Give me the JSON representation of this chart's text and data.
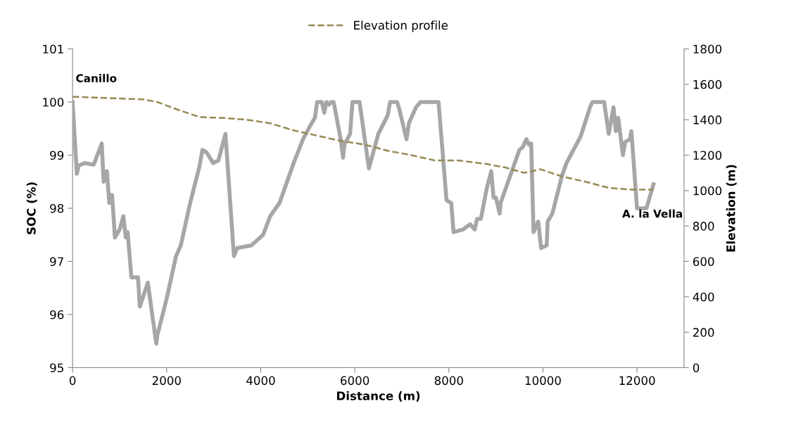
{
  "chart_data": {
    "type": "line",
    "xlabel": "Distance (m)",
    "ylabel": "SOC (%)",
    "y2label": "Elevation (m)",
    "xlim": [
      0,
      13000
    ],
    "xticks": [
      0,
      2000,
      4000,
      6000,
      8000,
      10000,
      12000
    ],
    "ylim": [
      95,
      101
    ],
    "yticks": [
      95,
      96,
      97,
      98,
      99,
      100,
      101
    ],
    "y2lim": [
      0,
      1800
    ],
    "y2ticks": [
      0,
      200,
      400,
      600,
      800,
      1000,
      1200,
      1400,
      1600,
      1800
    ],
    "grid": false,
    "legend": "top",
    "marker": "none",
    "annotations": [
      "Canillo",
      "A. la Vella"
    ],
    "series": [
      {
        "color": "#a6a6a6",
        "line_style": "solid",
        "x": [
          0,
          90,
          130,
          250,
          450,
          570,
          620,
          660,
          730,
          780,
          840,
          900,
          1000,
          1080,
          1130,
          1170,
          1250,
          1390,
          1430,
          1600,
          1700,
          1780,
          1800,
          2000,
          2100,
          2200,
          2300,
          2500,
          2700,
          2760,
          2850,
          2990,
          3100,
          3250,
          3430,
          3500,
          3800,
          4050,
          4200,
          4400,
          4700,
          4900,
          5050,
          5150,
          5200,
          5300,
          5350,
          5400,
          5450,
          5500,
          5550,
          5700,
          5750,
          5780,
          5900,
          5950,
          6100,
          6300,
          6500,
          6700,
          6750,
          6900,
          6950,
          7100,
          7150,
          7300,
          7400,
          7780,
          7950,
          8050,
          8100,
          8300,
          8450,
          8550,
          8600,
          8680,
          8800,
          8900,
          8950,
          9000,
          9080,
          9100,
          9300,
          9500,
          9570,
          9650,
          9700,
          9750,
          9800,
          9900,
          9960,
          10080,
          10100,
          10200,
          10400,
          10500,
          10800,
          11000,
          11050,
          11300,
          11400,
          11500,
          11550,
          11600,
          11700,
          11750,
          11850,
          11880,
          12000,
          12200,
          12350
        ],
        "values": [
          100,
          98.65,
          98.8,
          98.85,
          98.82,
          99.1,
          99.22,
          98.5,
          98.7,
          98.1,
          98.25,
          97.45,
          97.6,
          97.85,
          97.45,
          97.55,
          96.7,
          96.7,
          96.15,
          96.6,
          95.95,
          95.45,
          95.6,
          96.3,
          96.7,
          97.1,
          97.3,
          98.1,
          98.8,
          99.1,
          99.05,
          98.85,
          98.9,
          99.4,
          97.1,
          97.25,
          97.3,
          97.5,
          97.85,
          98.1,
          98.85,
          99.3,
          99.55,
          99.7,
          100,
          100,
          99.8,
          100,
          99.95,
          100,
          100,
          99.3,
          98.95,
          99.2,
          99.4,
          100,
          100,
          98.75,
          99.4,
          99.75,
          100,
          100,
          99.85,
          99.3,
          99.6,
          99.9,
          100,
          100,
          98.15,
          98.1,
          97.55,
          97.6,
          97.7,
          97.6,
          97.8,
          97.8,
          98.35,
          98.7,
          98.2,
          98.2,
          97.9,
          98.1,
          98.6,
          99.1,
          99.15,
          99.3,
          99.2,
          99.22,
          97.55,
          97.75,
          97.25,
          97.3,
          97.75,
          97.9,
          98.6,
          98.85,
          99.35,
          99.9,
          100,
          100,
          99.4,
          99.9,
          99.45,
          99.7,
          99.0,
          99.25,
          99.3,
          99.45,
          98.0,
          98.0,
          98.45
        ]
      },
      {
        "name": "Elevation profile",
        "color": "#948a54",
        "line_style": "dashed",
        "axis": "y2",
        "x": [
          0,
          500,
          1000,
          1500,
          1800,
          2200,
          2700,
          3200,
          3700,
          4200,
          4700,
          5200,
          5700,
          6200,
          6700,
          7200,
          7700,
          8200,
          8800,
          9200,
          9600,
          9950,
          10400,
          10900,
          11400,
          11900,
          12350
        ],
        "values": [
          1530,
          1525,
          1520,
          1515,
          1500,
          1460,
          1415,
          1410,
          1400,
          1380,
          1340,
          1310,
          1280,
          1260,
          1225,
          1200,
          1170,
          1170,
          1150,
          1130,
          1100,
          1120,
          1080,
          1050,
          1015,
          1005,
          1005
        ]
      }
    ]
  }
}
